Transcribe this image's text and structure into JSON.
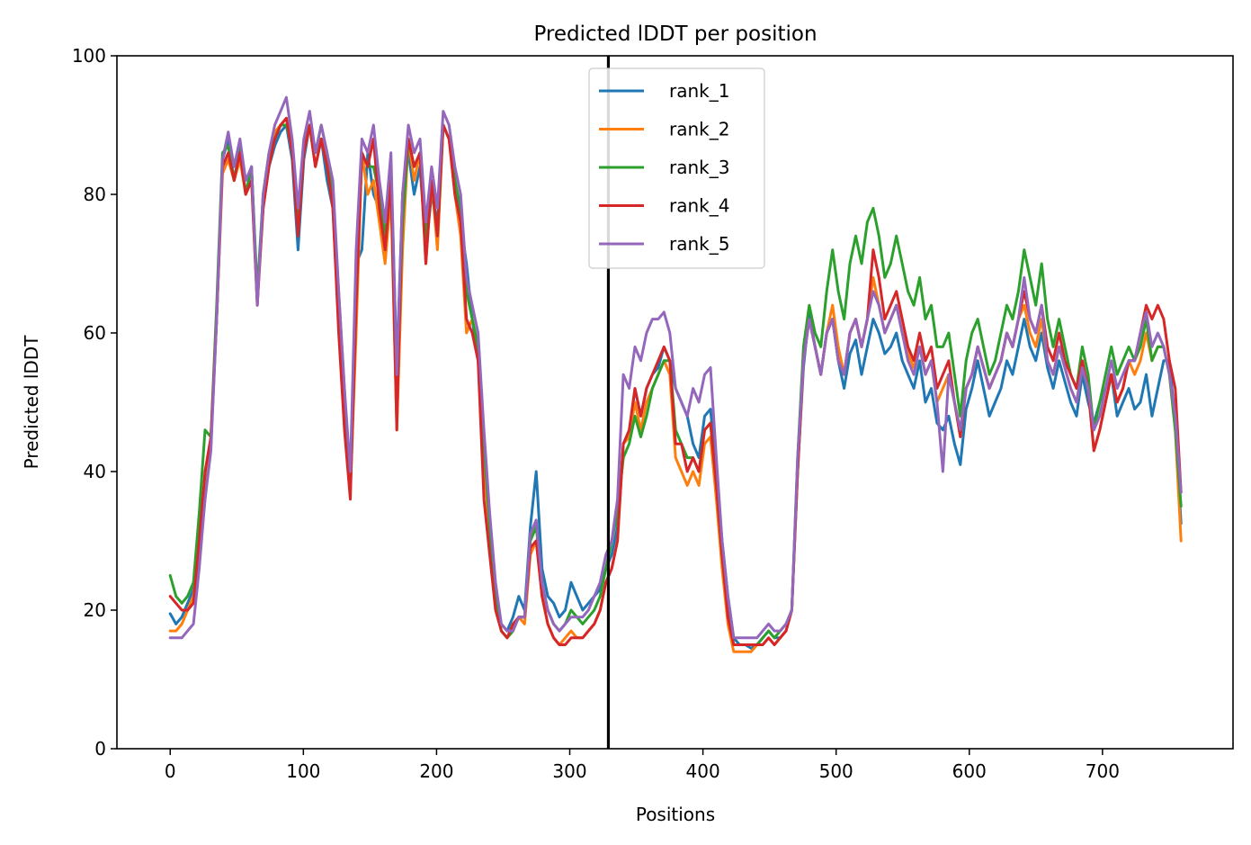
{
  "chart_data": {
    "type": "line",
    "title": "Predicted lDDT per position",
    "xlabel": "Positions",
    "ylabel": "Predicted lDDT",
    "xlim": [
      -40,
      798
    ],
    "ylim": [
      0,
      100
    ],
    "xticks": [
      0,
      100,
      200,
      300,
      400,
      500,
      600,
      700
    ],
    "yticks": [
      0,
      20,
      40,
      60,
      80,
      100
    ],
    "grid": false,
    "legend_position": "upper center",
    "vline_x": 329,
    "series": [
      {
        "name": "rank_1",
        "color": "#1f77b4",
        "values": [
          19.5,
          18,
          19,
          21,
          23,
          30,
          38,
          44,
          62,
          85,
          88,
          82,
          86,
          80,
          84,
          65,
          78,
          84,
          87,
          89,
          90,
          85,
          72,
          85,
          90,
          84,
          88,
          82,
          78,
          62,
          50,
          38,
          70,
          72,
          86,
          80,
          78,
          72,
          84,
          55,
          80,
          86,
          80,
          84,
          72,
          80,
          76,
          90,
          88,
          82,
          76,
          70,
          62,
          56,
          42,
          32,
          23,
          18,
          17,
          19,
          22,
          20,
          32,
          40,
          26,
          22,
          21,
          19,
          20,
          24,
          22,
          20,
          21,
          22,
          23,
          26,
          28,
          32,
          44,
          45,
          52,
          48,
          52,
          54,
          55,
          58,
          56,
          52,
          50,
          48,
          44,
          42,
          48,
          49,
          40,
          30,
          22,
          16,
          15,
          15,
          14.5,
          15,
          16,
          17,
          16,
          16,
          17,
          20,
          40,
          55,
          63,
          58,
          54,
          60,
          62,
          56,
          52,
          57,
          59,
          54,
          58,
          62,
          60,
          57,
          58,
          60,
          56,
          54,
          52,
          56,
          50,
          52,
          47,
          46,
          48,
          44,
          41,
          49,
          52,
          56,
          52,
          48,
          50,
          52,
          56,
          54,
          58,
          62,
          58,
          56,
          60,
          55,
          52,
          56,
          53,
          50,
          48,
          54,
          50,
          47,
          50,
          52,
          54,
          48,
          50,
          52,
          49,
          50,
          54,
          48,
          52,
          56,
          56,
          47,
          32.5
        ]
      },
      {
        "name": "rank_2",
        "color": "#ff7f0e",
        "values": [
          17,
          17,
          18,
          20,
          22,
          28,
          36,
          44,
          62,
          83,
          85,
          82,
          85,
          80,
          82,
          64,
          80,
          85,
          89,
          90,
          91,
          86,
          76,
          86,
          90,
          84,
          88,
          84,
          80,
          66,
          52,
          37,
          60,
          86,
          80,
          82,
          76,
          70,
          80,
          46,
          72,
          88,
          82,
          86,
          70,
          82,
          72,
          90,
          88,
          80,
          74,
          60,
          62,
          58,
          42,
          30,
          21,
          17,
          16,
          17,
          19,
          18,
          28,
          30,
          22,
          18,
          16,
          15,
          16,
          17,
          16,
          16,
          17,
          18,
          20,
          24,
          26,
          30,
          44,
          45,
          50,
          46,
          50,
          52,
          54,
          56,
          54,
          42,
          40,
          38,
          40,
          38,
          44,
          45,
          36,
          26,
          18,
          14,
          14,
          14,
          14,
          15,
          15,
          16,
          15,
          16,
          17,
          20,
          40,
          56,
          62,
          58,
          54,
          60,
          64,
          58,
          54,
          60,
          62,
          58,
          62,
          68,
          64,
          60,
          62,
          64,
          60,
          57,
          55,
          58,
          54,
          56,
          50,
          52,
          54,
          50,
          46,
          52,
          54,
          58,
          55,
          52,
          54,
          56,
          60,
          58,
          62,
          64,
          60,
          58,
          62,
          56,
          54,
          58,
          55,
          52,
          50,
          55,
          52,
          43,
          46,
          50,
          54,
          50,
          52,
          56,
          54,
          56,
          60,
          56,
          58,
          58,
          54,
          46,
          30
        ]
      },
      {
        "name": "rank_3",
        "color": "#2ca02c",
        "values": [
          25,
          22,
          21,
          22,
          24,
          34,
          46,
          45,
          64,
          86,
          87,
          82,
          87,
          80,
          84,
          66,
          80,
          86,
          88,
          90,
          90,
          87,
          76,
          87,
          90,
          86,
          90,
          86,
          80,
          64,
          50,
          38,
          70,
          86,
          84,
          84,
          80,
          74,
          82,
          50,
          76,
          88,
          84,
          86,
          74,
          82,
          74,
          90,
          88,
          82,
          78,
          66,
          62,
          58,
          44,
          32,
          22,
          17,
          16,
          17,
          19,
          19,
          30,
          32,
          24,
          20,
          18,
          17,
          18,
          20,
          19,
          18,
          19,
          20,
          22,
          26,
          30,
          34,
          42,
          44,
          48,
          45,
          48,
          52,
          54,
          56,
          56,
          46,
          44,
          42,
          42,
          40,
          46,
          47,
          38,
          28,
          20,
          15,
          15,
          15,
          15,
          15,
          16,
          17,
          16,
          17,
          18,
          20,
          42,
          58,
          64,
          60,
          58,
          66,
          72,
          66,
          62,
          70,
          74,
          70,
          76,
          78,
          74,
          68,
          70,
          74,
          70,
          66,
          64,
          68,
          62,
          64,
          58,
          58,
          60,
          54,
          48,
          56,
          60,
          62,
          58,
          54,
          56,
          60,
          64,
          62,
          66,
          72,
          68,
          64,
          70,
          62,
          58,
          62,
          58,
          54,
          52,
          58,
          54,
          46,
          50,
          54,
          58,
          54,
          56,
          58,
          56,
          58,
          62,
          56,
          58,
          58,
          54,
          46,
          35
        ]
      },
      {
        "name": "rank_4",
        "color": "#d62728",
        "values": [
          22,
          21,
          20,
          20,
          21,
          30,
          40,
          45,
          62,
          84,
          86,
          82,
          86,
          80,
          82,
          64,
          78,
          84,
          88,
          90,
          91,
          86,
          74,
          86,
          90,
          84,
          88,
          84,
          78,
          60,
          46,
          36,
          64,
          86,
          84,
          88,
          78,
          72,
          82,
          46,
          80,
          88,
          84,
          86,
          70,
          82,
          74,
          90,
          88,
          80,
          76,
          62,
          60,
          56,
          36,
          28,
          20,
          17,
          16,
          18,
          19,
          19,
          29,
          30,
          22,
          18,
          16,
          15,
          15,
          16,
          16,
          16,
          17,
          18,
          20,
          24,
          26,
          30,
          44,
          46,
          52,
          48,
          52,
          54,
          56,
          58,
          56,
          44,
          44,
          40,
          42,
          40,
          46,
          47,
          38,
          28,
          19,
          15,
          15,
          15,
          15,
          15,
          15,
          16,
          15,
          16,
          17,
          20,
          40,
          56,
          62,
          58,
          54,
          60,
          62,
          56,
          54,
          60,
          62,
          58,
          62,
          72,
          68,
          62,
          64,
          66,
          62,
          58,
          56,
          60,
          56,
          58,
          52,
          54,
          56,
          50,
          45,
          52,
          54,
          58,
          55,
          52,
          54,
          56,
          60,
          58,
          62,
          66,
          62,
          60,
          64,
          58,
          56,
          60,
          56,
          54,
          52,
          56,
          52,
          43,
          46,
          50,
          54,
          50,
          52,
          56,
          56,
          60,
          64,
          62,
          64,
          62,
          56,
          52,
          37
        ]
      },
      {
        "name": "rank_5",
        "color": "#9467bd",
        "values": [
          16,
          16,
          16,
          17,
          18,
          26,
          36,
          43,
          62,
          85,
          89,
          84,
          88,
          82,
          84,
          64,
          80,
          86,
          90,
          92,
          94,
          88,
          78,
          88,
          92,
          86,
          90,
          86,
          82,
          66,
          52,
          40,
          72,
          88,
          86,
          90,
          82,
          76,
          86,
          54,
          80,
          90,
          86,
          88,
          76,
          84,
          78,
          92,
          90,
          84,
          80,
          68,
          64,
          60,
          46,
          34,
          24,
          18,
          17,
          17,
          19,
          19,
          31,
          33,
          24,
          20,
          18,
          17,
          18,
          19,
          19,
          19,
          20,
          22,
          24,
          28,
          30,
          36,
          54,
          52,
          58,
          56,
          60,
          62,
          62,
          63,
          60,
          52,
          50,
          48,
          52,
          50,
          54,
          55,
          42,
          30,
          22,
          16,
          16,
          16,
          16,
          16,
          17,
          18,
          17,
          17,
          18,
          20,
          42,
          56,
          62,
          58,
          54,
          60,
          62,
          56,
          54,
          60,
          62,
          58,
          62,
          66,
          64,
          60,
          62,
          64,
          60,
          56,
          54,
          58,
          54,
          56,
          50,
          40,
          54,
          50,
          46,
          52,
          54,
          58,
          55,
          52,
          54,
          56,
          60,
          58,
          62,
          68,
          62,
          60,
          64,
          56,
          54,
          58,
          55,
          52,
          50,
          55,
          52,
          46,
          48,
          52,
          56,
          52,
          54,
          56,
          56,
          60,
          63,
          58,
          60,
          58,
          54,
          48,
          37
        ]
      }
    ]
  }
}
